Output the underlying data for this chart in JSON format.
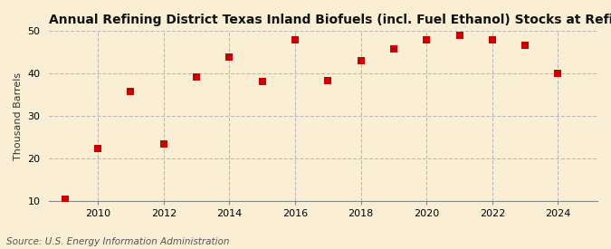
{
  "title": "Annual Refining District Texas Inland Biofuels (incl. Fuel Ethanol) Stocks at Refineries",
  "ylabel": "Thousand Barrels",
  "source": "Source: U.S. Energy Information Administration",
  "background_color": "#faefd4",
  "plot_bg_color": "#faefd4",
  "years": [
    2009,
    2010,
    2011,
    2012,
    2013,
    2014,
    2015,
    2016,
    2017,
    2018,
    2019,
    2020,
    2021,
    2022,
    2023,
    2024
  ],
  "values": [
    10.5,
    22.5,
    35.8,
    23.5,
    39.2,
    44.0,
    38.2,
    48.0,
    38.3,
    43.0,
    45.8,
    48.0,
    49.0,
    48.0,
    46.7,
    40.0
  ],
  "ylim": [
    10,
    50
  ],
  "yticks": [
    10,
    20,
    30,
    40,
    50
  ],
  "xlim": [
    2008.5,
    2025.2
  ],
  "xticks": [
    2010,
    2012,
    2014,
    2016,
    2018,
    2020,
    2022,
    2024
  ],
  "marker_color": "#cc0000",
  "marker": "s",
  "marker_size": 28,
  "title_fontsize": 10,
  "label_fontsize": 8,
  "tick_fontsize": 8,
  "source_fontsize": 7.5,
  "grid_color": "#bbbbbb",
  "grid_linewidth": 0.8
}
